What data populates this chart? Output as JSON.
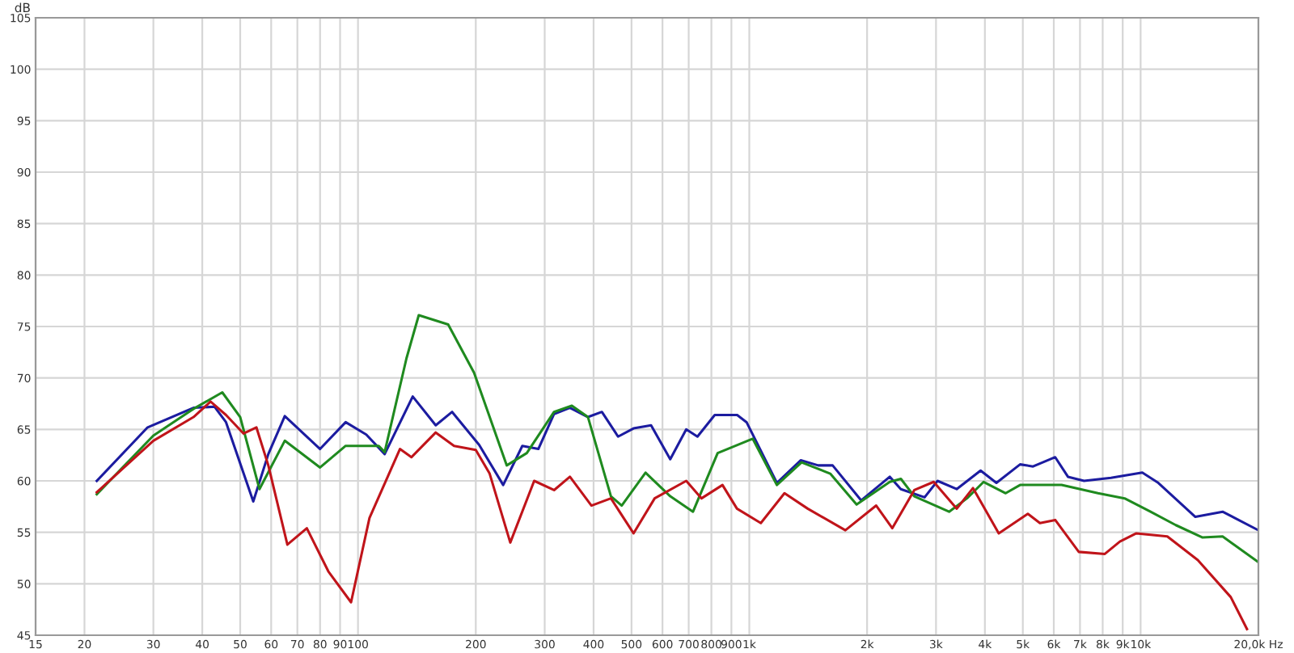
{
  "chart_data": {
    "type": "line",
    "ylabel": "dB",
    "log": "x",
    "grid": true,
    "legend": false,
    "marker": "none",
    "line_style": "solid",
    "xlim": [
      15,
      20000
    ],
    "ylim": [
      45,
      105
    ],
    "xticks": [
      15,
      20,
      30,
      40,
      50,
      60,
      70,
      80,
      90,
      100,
      200,
      300,
      400,
      500,
      600,
      700,
      800,
      900,
      {
        "value": 1000,
        "label": "1k"
      },
      {
        "value": 2000,
        "label": "2k"
      },
      {
        "value": 3000,
        "label": "3k"
      },
      {
        "value": 4000,
        "label": "4k"
      },
      {
        "value": 5000,
        "label": "5k"
      },
      {
        "value": 6000,
        "label": "6k"
      },
      {
        "value": 7000,
        "label": "7k"
      },
      {
        "value": 8000,
        "label": "8k"
      },
      {
        "value": 9000,
        "label": "9k"
      },
      {
        "value": 10000,
        "label": "10k"
      },
      {
        "value": 20000,
        "label": "20,0k Hz"
      }
    ],
    "yticks": [
      45,
      50,
      55,
      60,
      65,
      70,
      75,
      80,
      85,
      90,
      95,
      100,
      105
    ],
    "series": [
      {
        "color": "#1c1ca0",
        "x": [
          21.5,
          29,
          38,
          43,
          46,
          54,
          59,
          65,
          80,
          93,
          105,
          117,
          138,
          158,
          174,
          204,
          235,
          263,
          289,
          317,
          348,
          387,
          420,
          462,
          506,
          561,
          628,
          690,
          737,
          816,
          931,
          984,
          1176,
          1353,
          1500,
          1633,
          1932,
          2286,
          2439,
          2805,
          3027,
          3388,
          3900,
          4280,
          4920,
          5310,
          6050,
          6520,
          7170,
          8400,
          10100,
          11100,
          13800,
          16200,
          20000
        ],
        "values": [
          60,
          65.2,
          67.1,
          67.2,
          65.7,
          58,
          62.6,
          66.3,
          63.1,
          65.7,
          64.5,
          62.6,
          68.2,
          65.4,
          66.7,
          63.5,
          59.6,
          63.4,
          63.1,
          66.5,
          67.1,
          66.2,
          66.7,
          64.3,
          65.1,
          65.4,
          62.1,
          65,
          64.3,
          66.4,
          66.4,
          65.7,
          59.8,
          62,
          61.5,
          61.5,
          58.1,
          60.4,
          59.2,
          58.4,
          60,
          59.2,
          61,
          59.8,
          61.6,
          61.4,
          62.3,
          60.4,
          60,
          60.3,
          60.8,
          59.8,
          56.5,
          57,
          55.2
        ]
      },
      {
        "color": "#1f8a1f",
        "x": [
          21.5,
          30,
          38,
          45,
          50,
          56,
          65,
          80,
          93,
          113,
          117,
          133,
          143,
          170,
          198,
          240,
          270,
          317,
          352,
          387,
          443,
          472,
          543,
          628,
          718,
          830,
          1020,
          1176,
          1360,
          1610,
          1880,
          2286,
          2440,
          2640,
          3240,
          3600,
          3970,
          4520,
          4920,
          6280,
          7780,
          9100,
          10600,
          12300,
          14400,
          16200,
          20000
        ],
        "values": [
          58.7,
          64.4,
          67,
          68.6,
          66.2,
          59.2,
          63.9,
          61.3,
          63.4,
          63.4,
          62.8,
          71.9,
          76.1,
          75.2,
          70.5,
          61.5,
          62.7,
          66.7,
          67.3,
          66.2,
          58.5,
          57.6,
          60.8,
          58.5,
          57,
          62.7,
          64.1,
          59.6,
          61.8,
          60.7,
          57.7,
          59.9,
          60.2,
          58.5,
          57,
          58.3,
          59.9,
          58.8,
          59.6,
          59.6,
          58.8,
          58.3,
          57,
          55.7,
          54.5,
          54.6,
          52.1
        ]
      },
      {
        "color": "#c0141a",
        "x": [
          21.5,
          30,
          38,
          42,
          46,
          51,
          55,
          59,
          66,
          74,
          84,
          96,
          107,
          128,
          137,
          158,
          176,
          200,
          217,
          245,
          282,
          317,
          348,
          395,
          443,
          506,
          573,
          690,
          755,
          854,
          930,
          1070,
          1230,
          1410,
          1760,
          2110,
          2320,
          2640,
          2960,
          3390,
          3730,
          4340,
          5150,
          5530,
          6050,
          6950,
          8100,
          8850,
          9750,
          11700,
          14000,
          17000,
          18700
        ],
        "values": [
          58.9,
          63.9,
          66.2,
          67.7,
          66.4,
          64.6,
          65.2,
          61.5,
          53.8,
          55.4,
          51.2,
          48.2,
          56.4,
          63.1,
          62.3,
          64.7,
          63.4,
          63,
          60.7,
          54,
          60,
          59.1,
          60.4,
          57.6,
          58.3,
          54.9,
          58.3,
          60,
          58.3,
          59.6,
          57.3,
          55.9,
          58.8,
          57.3,
          55.2,
          57.6,
          55.4,
          59.1,
          59.9,
          57.3,
          59.3,
          54.9,
          56.8,
          55.9,
          56.2,
          53.1,
          52.9,
          54.1,
          54.9,
          54.6,
          52.3,
          48.7,
          45.6
        ]
      }
    ]
  }
}
